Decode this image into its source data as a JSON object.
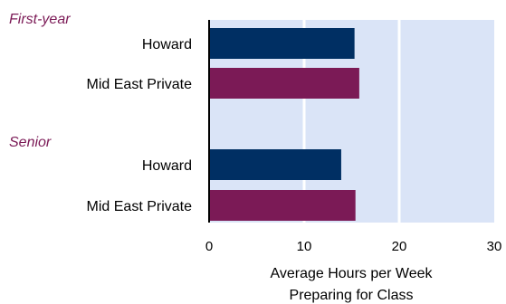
{
  "chart_data": {
    "type": "bar",
    "orientation": "horizontal",
    "groups": [
      {
        "label": "First-year",
        "bars": [
          {
            "category": "Howard",
            "value": 15.3
          },
          {
            "category": "Mid East Private",
            "value": 15.8
          }
        ]
      },
      {
        "label": "Senior",
        "bars": [
          {
            "category": "Howard",
            "value": 13.9
          },
          {
            "category": "Mid East Private",
            "value": 15.4
          }
        ]
      }
    ],
    "xlabel_lines": [
      "Average Hours per Week",
      "Preparing for Class"
    ],
    "xlim": [
      0,
      30
    ],
    "xticks": [
      0,
      10,
      20,
      30
    ],
    "grid": "vertical",
    "colors": {
      "Howard": "#002F63",
      "Mid East Private": "#7B1A56",
      "group_label": "#7B1A56",
      "plot_background": "#DAE4F7"
    }
  }
}
